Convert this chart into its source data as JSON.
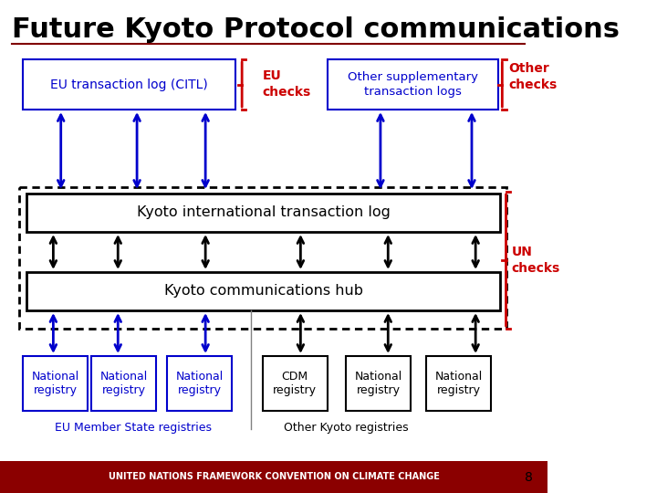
{
  "title": "Future Kyoto Protocol communications",
  "title_color": "#000000",
  "title_fontsize": 22,
  "bg_color": "#ffffff",
  "blue_color": "#0000CC",
  "red_color": "#CC0000",
  "black_color": "#000000",
  "dark_red_line": "#800000",
  "footer_bg": "#8B0000",
  "footer_text": "UNITED NATIONS FRAMEWORK CONVENTION ON CLIMATE CHANGE",
  "page_num": "8"
}
